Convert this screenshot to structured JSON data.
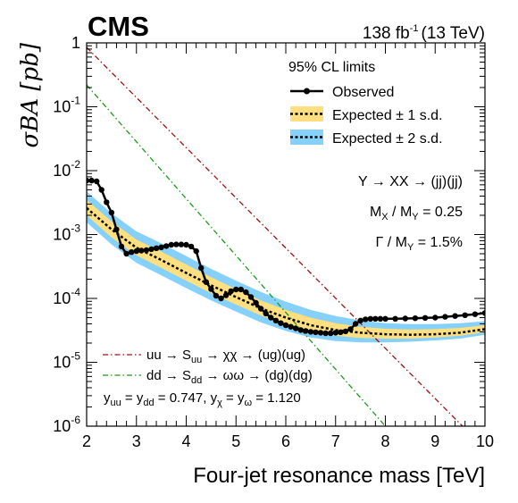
{
  "header": {
    "experiment": "CMS",
    "lumi_value": "138 fb",
    "lumi_exp": "-1",
    "lumi_energy": "(13 TeV)"
  },
  "legend": {
    "title": "95% CL limits",
    "observed": "Observed",
    "expected_1sd": "Expected ± 1 s.d.",
    "expected_2sd": "Expected ± 2 s.d."
  },
  "annotations": {
    "process": "Y → XX → (jj)(jj)",
    "mass_ratio_lhs": "M",
    "mass_ratio_sub1": "X",
    "mass_ratio_mid": " / M",
    "mass_ratio_sub2": "Y",
    "mass_ratio_rhs": " = 0.25",
    "width_lhs": "Γ / M",
    "width_sub": "Y",
    "width_rhs": " = 1.5%"
  },
  "theory_legend": {
    "uu_a": "uu → S",
    "uu_sub": "uu",
    "uu_b": " → χχ → (ug)(ug)",
    "dd_a": "dd → S",
    "dd_sub": "dd",
    "dd_b": " → ωω → (dg)(dg)",
    "coup_y": "y",
    "coup_sub_uu": "uu",
    "coup_eq1": " = y",
    "coup_sub_dd": "dd",
    "coup_val1": " = 0.747, y",
    "coup_sub_chi": "χ",
    "coup_eq2": " = y",
    "coup_sub_omega": "ω",
    "coup_val2": " = 1.120"
  },
  "colors": {
    "observed": "#000000",
    "band_1sd": "#ffdf7f",
    "band_2sd": "#85d1fb",
    "theory_uu": "#a01010",
    "theory_dd": "#1a9a1a"
  },
  "chart_data": {
    "type": "line",
    "xlabel": "Four-jet resonance mass [TeV]",
    "ylabel": "σBA [pb]",
    "xlim": [
      2,
      10
    ],
    "ylim": [
      1e-06,
      1
    ],
    "yscale": "log",
    "x_ticks": [
      "2",
      "3",
      "4",
      "5",
      "6",
      "7",
      "8",
      "9",
      "10"
    ],
    "y_ticks": [
      {
        "base": "10",
        "exp": "-6"
      },
      {
        "base": "10",
        "exp": "-5"
      },
      {
        "base": "10",
        "exp": "-4"
      },
      {
        "base": "10",
        "exp": "-3"
      },
      {
        "base": "10",
        "exp": "-2"
      },
      {
        "base": "10",
        "exp": "-1"
      },
      {
        "base": "1",
        "exp": ""
      }
    ],
    "observed": {
      "x": [
        2.0,
        2.1,
        2.2,
        2.3,
        2.4,
        2.5,
        2.6,
        2.7,
        2.8,
        2.9,
        3.0,
        3.1,
        3.2,
        3.3,
        3.4,
        3.5,
        3.6,
        3.7,
        3.8,
        3.9,
        4.0,
        4.1,
        4.2,
        4.3,
        4.4,
        4.5,
        4.6,
        4.7,
        4.8,
        4.9,
        5.0,
        5.1,
        5.2,
        5.3,
        5.4,
        5.5,
        5.6,
        5.7,
        5.8,
        5.9,
        6.0,
        6.1,
        6.2,
        6.3,
        6.4,
        6.5,
        6.6,
        6.7,
        6.8,
        6.9,
        7.0,
        7.1,
        7.2,
        7.3,
        7.4,
        7.5,
        7.6,
        7.7,
        7.8,
        7.9,
        8.0,
        8.2,
        8.4,
        8.6,
        8.8,
        9.0,
        9.2,
        9.4,
        9.6,
        9.8,
        10.0
      ],
      "y": [
        0.007,
        0.007,
        0.0068,
        0.005,
        0.0032,
        0.0022,
        0.0012,
        0.00065,
        0.0005,
        0.00053,
        0.00055,
        0.00056,
        0.00057,
        0.00059,
        0.00061,
        0.00063,
        0.00066,
        0.00069,
        0.0007,
        0.0007,
        0.00069,
        0.00065,
        0.00055,
        0.0003,
        0.00018,
        0.00014,
        0.00011,
        0.0001,
        0.000112,
        0.00013,
        0.000138,
        0.000138,
        0.000125,
        0.000105,
        8.5e-05,
        6.9e-05,
        5.8e-05,
        5e-05,
        4.5e-05,
        4.1e-05,
        3.8e-05,
        3.6e-05,
        3.4e-05,
        3.2e-05,
        3.1e-05,
        3e-05,
        2.95e-05,
        2.9e-05,
        2.85e-05,
        2.85e-05,
        2.9e-05,
        2.95e-05,
        3.05e-05,
        3.3e-05,
        4e-05,
        4.5e-05,
        4.7e-05,
        4.8e-05,
        4.8e-05,
        4.8e-05,
        4.8e-05,
        4.8e-05,
        4.85e-05,
        4.9e-05,
        4.95e-05,
        5e-05,
        5.15e-05,
        5.3e-05,
        5.45e-05,
        5.65e-05,
        5.9e-05
      ]
    },
    "expected": {
      "x": [
        2.0,
        2.5,
        3.0,
        3.5,
        4.0,
        4.5,
        5.0,
        5.5,
        6.0,
        6.5,
        7.0,
        7.5,
        8.0,
        8.5,
        9.0,
        9.5,
        10.0
      ],
      "median": [
        0.0026,
        0.0012,
        0.00062,
        0.0004,
        0.00025,
        0.00016,
        0.000105,
        7e-05,
        5e-05,
        3.8e-05,
        3.2e-05,
        2.9e-05,
        2.75e-05,
        2.7e-05,
        2.75e-05,
        2.9e-05,
        3.3e-05
      ],
      "lo1": [
        0.002,
        0.0009,
        0.00047,
        0.0003,
        0.00019,
        0.00012,
        8e-05,
        5.4e-05,
        3.9e-05,
        3e-05,
        2.6e-05,
        2.4e-05,
        2.35e-05,
        2.35e-05,
        2.45e-05,
        2.6e-05,
        2.95e-05
      ],
      "hi1": [
        0.0035,
        0.0016,
        0.00083,
        0.00054,
        0.00034,
        0.000215,
        0.00014,
        9.3e-05,
        6.6e-05,
        5e-05,
        4.1e-05,
        3.6e-05,
        3.35e-05,
        3.25e-05,
        3.3e-05,
        3.45e-05,
        3.8e-05
      ],
      "lo2": [
        0.00155,
        0.0007,
        0.00036,
        0.00023,
        0.000145,
        9.3e-05,
        6.2e-05,
        4.2e-05,
        3.1e-05,
        2.45e-05,
        2.15e-05,
        2.05e-05,
        2.05e-05,
        2.1e-05,
        2.2e-05,
        2.35e-05,
        2.7e-05
      ],
      "hi2": [
        0.0047,
        0.00215,
        0.00112,
        0.00073,
        0.00046,
        0.00029,
        0.00019,
        0.000126,
        8.9e-05,
        6.6e-05,
        5.3e-05,
        4.5e-05,
        4.1e-05,
        3.95e-05,
        3.95e-05,
        4.1e-05,
        4.4e-05
      ]
    },
    "theory_uu": {
      "x": [
        2.0,
        9.55
      ],
      "y": [
        0.85,
        1e-06
      ]
    },
    "theory_dd": {
      "x": [
        2.0,
        8.0
      ],
      "y": [
        0.22,
        1e-06
      ]
    }
  }
}
